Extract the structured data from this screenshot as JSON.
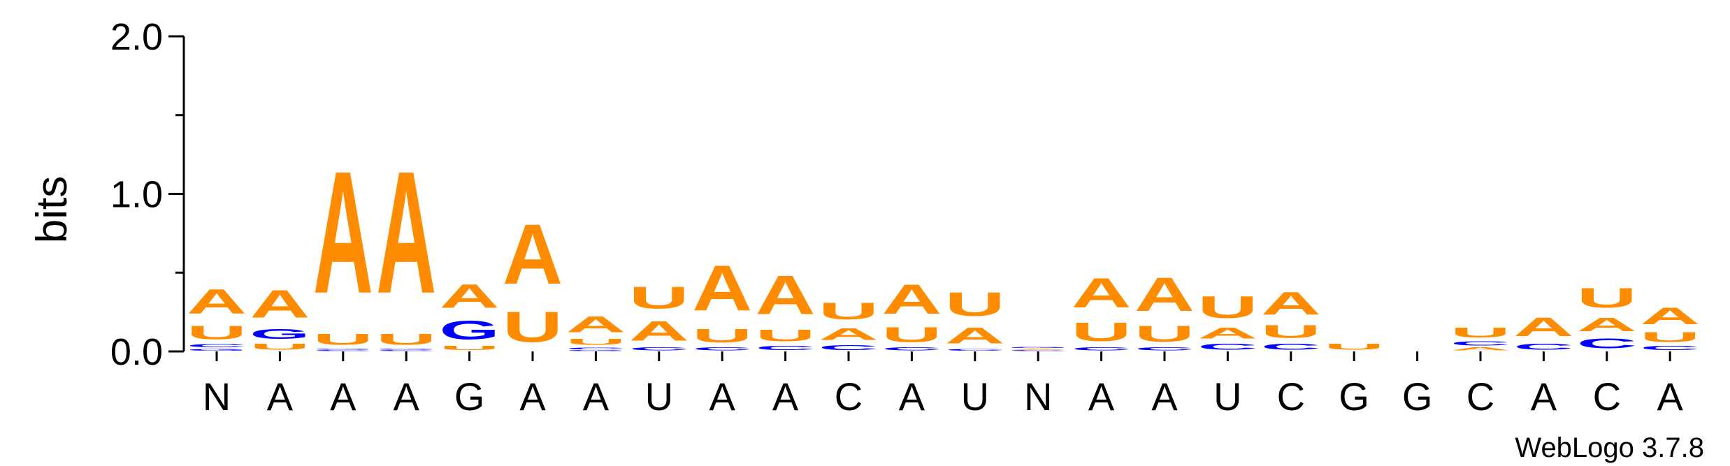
{
  "credit": "WebLogo 3.7.8",
  "colors": {
    "A": "#ff8c00",
    "U": "#ff8c00",
    "G": "#0000ff",
    "C": "#0000ff"
  },
  "chart_data": {
    "type": "sequence-logo",
    "ylabel": "bits",
    "ylim": [
      0,
      2.0
    ],
    "yticks": [
      "0.0",
      "1.0",
      "2.0"
    ],
    "categories": [
      "N",
      "A",
      "A",
      "A",
      "G",
      "A",
      "A",
      "U",
      "A",
      "A",
      "C",
      "A",
      "U",
      "N",
      "A",
      "A",
      "U",
      "C",
      "G",
      "G",
      "C",
      "A",
      "C",
      "A"
    ],
    "stacks": [
      [
        {
          "l": "G",
          "h": 0.02
        },
        {
          "l": "C",
          "h": 0.03
        },
        {
          "l": "U",
          "h": 0.14
        },
        {
          "l": "A",
          "h": 0.25
        }
      ],
      [
        {
          "l": "U",
          "h": 0.06
        },
        {
          "l": "G",
          "h": 0.1
        },
        {
          "l": "A",
          "h": 0.28
        }
      ],
      [
        {
          "l": "C",
          "h": 0.01
        },
        {
          "l": "G",
          "h": 0.01
        },
        {
          "l": "U",
          "h": 0.11
        },
        {
          "l": "A",
          "h": 1.24
        }
      ],
      [
        {
          "l": "C",
          "h": 0.01
        },
        {
          "l": "G",
          "h": 0.01
        },
        {
          "l": "U",
          "h": 0.11
        },
        {
          "l": "A",
          "h": 1.24
        }
      ],
      [
        {
          "l": "U",
          "h": 0.04
        },
        {
          "l": "G",
          "h": 0.19
        },
        {
          "l": "A",
          "h": 0.24
        }
      ],
      [
        {
          "l": "U",
          "h": 0.31
        },
        {
          "l": "A",
          "h": 0.61
        }
      ],
      [
        {
          "l": "G",
          "h": 0.01
        },
        {
          "l": "C",
          "h": 0.02
        },
        {
          "l": "U",
          "h": 0.06
        },
        {
          "l": "A",
          "h": 0.16
        }
      ],
      [
        {
          "l": "C",
          "h": 0.03
        },
        {
          "l": "A",
          "h": 0.2
        },
        {
          "l": "U",
          "h": 0.22
        }
      ],
      [
        {
          "l": "C",
          "h": 0.03
        },
        {
          "l": "U",
          "h": 0.14
        },
        {
          "l": "A",
          "h": 0.46
        }
      ],
      [
        {
          "l": "C",
          "h": 0.04
        },
        {
          "l": "U",
          "h": 0.12
        },
        {
          "l": "A",
          "h": 0.39
        }
      ],
      [
        {
          "l": "C",
          "h": 0.05
        },
        {
          "l": "A",
          "h": 0.12
        },
        {
          "l": "U",
          "h": 0.17
        }
      ],
      [
        {
          "l": "C",
          "h": 0.03
        },
        {
          "l": "U",
          "h": 0.15
        },
        {
          "l": "A",
          "h": 0.3
        }
      ],
      [
        {
          "l": "C",
          "h": 0.02
        },
        {
          "l": "A",
          "h": 0.16
        },
        {
          "l": "U",
          "h": 0.24
        }
      ],
      [
        {
          "l": "C",
          "h": 0.01
        },
        {
          "l": "A",
          "h": 0.01
        },
        {
          "l": "G",
          "h": 0.01
        }
      ],
      [
        {
          "l": "C",
          "h": 0.03
        },
        {
          "l": "U",
          "h": 0.19
        },
        {
          "l": "A",
          "h": 0.3
        }
      ],
      [
        {
          "l": "C",
          "h": 0.03
        },
        {
          "l": "U",
          "h": 0.16
        },
        {
          "l": "A",
          "h": 0.34
        }
      ],
      [
        {
          "l": "C",
          "h": 0.06
        },
        {
          "l": "A",
          "h": 0.11
        },
        {
          "l": "U",
          "h": 0.22
        }
      ],
      [
        {
          "l": "C",
          "h": 0.06
        },
        {
          "l": "U",
          "h": 0.13
        },
        {
          "l": "A",
          "h": 0.23
        }
      ],
      [
        {
          "l": "U",
          "h": 0.06
        }
      ],
      [],
      [
        {
          "l": "A",
          "h": 0.03
        },
        {
          "l": "C",
          "h": 0.04
        },
        {
          "l": "U",
          "h": 0.1
        }
      ],
      [
        {
          "l": "C",
          "h": 0.06
        },
        {
          "l": "A",
          "h": 0.19
        }
      ],
      [
        {
          "l": "C",
          "h": 0.1
        },
        {
          "l": "A",
          "h": 0.14
        },
        {
          "l": "U",
          "h": 0.2
        }
      ],
      [
        {
          "l": "C",
          "h": 0.04
        },
        {
          "l": "U",
          "h": 0.1
        },
        {
          "l": "A",
          "h": 0.17
        }
      ]
    ]
  }
}
